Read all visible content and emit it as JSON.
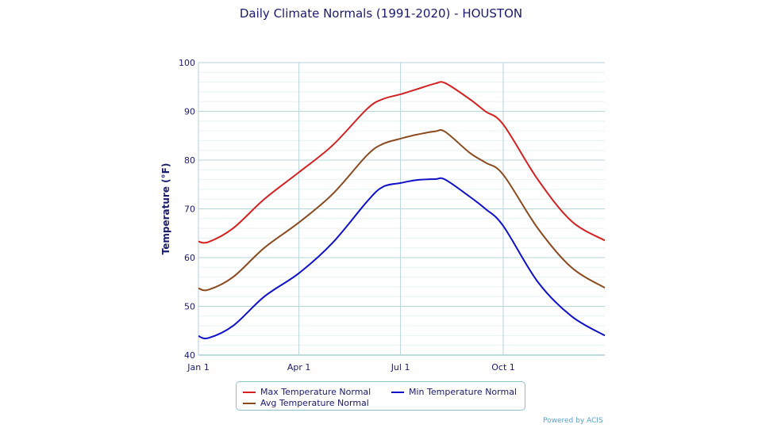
{
  "chart_data": {
    "type": "line",
    "title": "Daily Climate Normals (1991-2020) - HOUSTON",
    "ylabel": "Temperature (°F)",
    "xlabel": "",
    "ylim": [
      40,
      100
    ],
    "yticks": [
      "40",
      "50",
      "60",
      "70",
      "80",
      "90",
      "100"
    ],
    "xticks": [
      {
        "label": "Jan 1",
        "date": "01-01"
      },
      {
        "label": "Apr 1",
        "date": "04-01"
      },
      {
        "label": "Jul 1",
        "date": "07-01"
      },
      {
        "label": "Oct 1",
        "date": "10-01"
      }
    ],
    "grid": true,
    "legend": "bottom",
    "x": [
      "01-01",
      "01-10",
      "02-01",
      "03-01",
      "04-01",
      "05-01",
      "06-01",
      "06-15",
      "07-01",
      "07-15",
      "08-01",
      "08-10",
      "09-01",
      "09-15",
      "10-01",
      "11-01",
      "12-01",
      "12-31"
    ],
    "series": [
      {
        "name": "Max Temperature Normal",
        "color": "#d42020",
        "values": [
          63.3,
          63.2,
          66,
          72,
          77.5,
          83,
          90.5,
          92.5,
          93.5,
          94.5,
          95.7,
          95.8,
          92.5,
          90,
          87.3,
          76,
          67.5,
          63.5
        ]
      },
      {
        "name": "Avg Temperature Normal",
        "color": "#8b4a1e",
        "values": [
          53.7,
          53.4,
          56,
          62,
          67.2,
          73,
          81,
          83.3,
          84.4,
          85.2,
          85.9,
          85.8,
          81.5,
          79.5,
          77,
          66,
          58,
          53.8
        ]
      },
      {
        "name": "Min Temperature Normal",
        "color": "#1010c8",
        "values": [
          43.9,
          43.5,
          46,
          52,
          56.8,
          63,
          71.5,
          74.5,
          75.3,
          75.9,
          76.1,
          76.0,
          72.5,
          70,
          66.5,
          55,
          48,
          44
        ]
      }
    ]
  },
  "footer": {
    "powered": "Powered by ACIS"
  }
}
